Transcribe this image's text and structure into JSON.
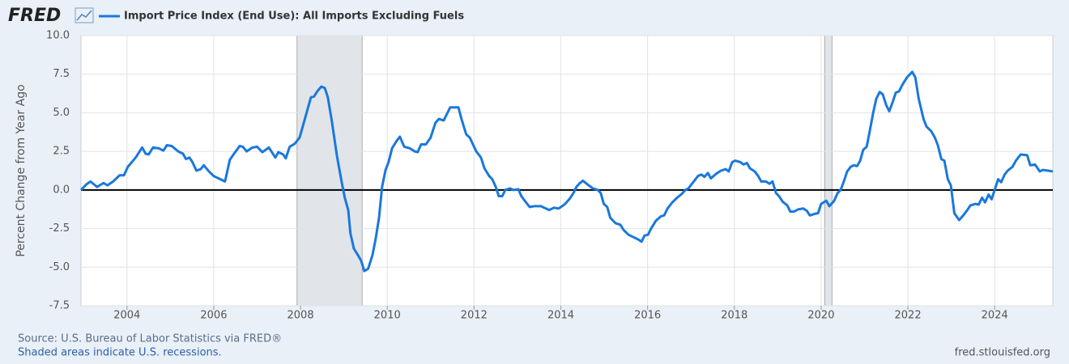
{
  "chart_data": {
    "type": "line",
    "logo": "FRED",
    "y_label": "Percent Change from Year Ago",
    "source": "Source: U.S. Bureau of Labor Statistics via FRED®",
    "note": "Shaded areas indicate U.S. recessions.",
    "url": "fred.stlouisfed.org",
    "xlim": [
      2002.94,
      2025.34
    ],
    "xticks": [
      2004,
      2006,
      2008,
      2010,
      2012,
      2014,
      2016,
      2018,
      2020,
      2022,
      2024
    ],
    "ylim": [
      -7.5,
      10
    ],
    "yticks": [
      {
        "value": 10,
        "label": "10.0"
      },
      7.5,
      {
        "value": 5,
        "label": "5.0"
      },
      2.5,
      {
        "value": 0,
        "label": "0.0"
      },
      -2.5,
      {
        "value": -5,
        "label": "-5.0"
      },
      -7.5
    ],
    "grid": true,
    "zero_line": true,
    "recessions": [
      [
        2007.92,
        2009.42
      ],
      [
        2020.08,
        2020.25
      ]
    ],
    "x": [
      2002.94,
      2003.08,
      2003.16,
      2003.31,
      2003.46,
      2003.55,
      2003.68,
      2003.83,
      2003.93,
      2004.02,
      2004.2,
      2004.35,
      2004.43,
      2004.5,
      2004.6,
      2004.73,
      2004.84,
      2004.92,
      2005.03,
      2005.18,
      2005.29,
      2005.36,
      2005.44,
      2005.51,
      2005.6,
      2005.7,
      2005.77,
      2005.89,
      2006.0,
      2006.15,
      2006.26,
      2006.37,
      2006.48,
      2006.6,
      2006.67,
      2006.76,
      2006.89,
      2007.0,
      2007.12,
      2007.27,
      2007.42,
      2007.49,
      2007.6,
      2007.66,
      2007.75,
      2007.87,
      2007.98,
      2008.09,
      2008.24,
      2008.31,
      2008.39,
      2008.48,
      2008.56,
      2008.63,
      2008.72,
      2008.84,
      2008.95,
      2009.02,
      2009.1,
      2009.15,
      2009.23,
      2009.32,
      2009.4,
      2009.47,
      2009.56,
      2009.66,
      2009.73,
      2009.81,
      2009.88,
      2009.96,
      2010.03,
      2010.11,
      2010.22,
      2010.29,
      2010.39,
      2010.52,
      2010.63,
      2010.7,
      2010.78,
      2010.89,
      2011.0,
      2011.11,
      2011.19,
      2011.3,
      2011.45,
      2011.64,
      2011.71,
      2011.82,
      2011.9,
      2012.05,
      2012.16,
      2012.24,
      2012.35,
      2012.42,
      2012.5,
      2012.57,
      2012.65,
      2012.72,
      2012.83,
      2012.91,
      2013.02,
      2013.09,
      2013.17,
      2013.28,
      2013.39,
      2013.54,
      2013.73,
      2013.84,
      2013.95,
      2014.03,
      2014.1,
      2014.21,
      2014.29,
      2014.36,
      2014.44,
      2014.51,
      2014.62,
      2014.74,
      2014.85,
      2014.92,
      2014.99,
      2015.07,
      2015.14,
      2015.26,
      2015.37,
      2015.45,
      2015.56,
      2015.67,
      2015.78,
      2015.86,
      2015.93,
      2016.01,
      2016.08,
      2016.19,
      2016.31,
      2016.38,
      2016.46,
      2016.57,
      2016.68,
      2016.79,
      2016.87,
      2016.94,
      2017.05,
      2017.16,
      2017.24,
      2017.31,
      2017.39,
      2017.46,
      2017.58,
      2017.69,
      2017.8,
      2017.87,
      2017.95,
      2018.02,
      2018.14,
      2018.21,
      2018.29,
      2018.36,
      2018.47,
      2018.55,
      2018.62,
      2018.73,
      2018.81,
      2018.88,
      2018.96,
      2019.03,
      2019.11,
      2019.22,
      2019.29,
      2019.37,
      2019.48,
      2019.59,
      2019.67,
      2019.74,
      2019.85,
      2019.93,
      2020.0,
      2020.12,
      2020.19,
      2020.3,
      2020.38,
      2020.45,
      2020.53,
      2020.6,
      2020.68,
      2020.75,
      2020.83,
      2020.9,
      2020.97,
      2021.05,
      2021.12,
      2021.2,
      2021.27,
      2021.35,
      2021.42,
      2021.5,
      2021.57,
      2021.65,
      2021.72,
      2021.8,
      2021.87,
      2021.98,
      2022.1,
      2022.17,
      2022.25,
      2022.36,
      2022.43,
      2022.54,
      2022.62,
      2022.69,
      2022.77,
      2022.84,
      2022.92,
      2022.99,
      2023.07,
      2023.18,
      2023.26,
      2023.37,
      2023.44,
      2023.56,
      2023.63,
      2023.71,
      2023.78,
      2023.86,
      2023.93,
      2024.0,
      2024.08,
      2024.15,
      2024.23,
      2024.3,
      2024.41,
      2024.49,
      2024.6,
      2024.75,
      2024.82,
      2024.93,
      2025.04,
      2025.11,
      2025.23,
      2025.34
    ],
    "series": [
      {
        "name": "Import Price Index (End Use): All Imports Excluding Fuels",
        "color": "#1a78dc",
        "values": [
          0,
          0.4,
          0.55,
          0.2,
          0.45,
          0.3,
          0.55,
          0.95,
          0.95,
          1.5,
          2.1,
          2.75,
          2.35,
          2.3,
          2.75,
          2.7,
          2.55,
          2.9,
          2.85,
          2.5,
          2.35,
          2.0,
          2.1,
          1.8,
          1.25,
          1.35,
          1.6,
          1.2,
          0.9,
          0.7,
          0.55,
          1.95,
          2.4,
          2.85,
          2.8,
          2.5,
          2.75,
          2.8,
          2.45,
          2.75,
          2.1,
          2.45,
          2.3,
          2.05,
          2.8,
          3.0,
          3.4,
          4.5,
          6.0,
          6.05,
          6.4,
          6.7,
          6.6,
          6.0,
          4.5,
          2.2,
          0.5,
          -0.5,
          -1.3,
          -2.8,
          -3.8,
          -4.2,
          -4.6,
          -5.25,
          -5.1,
          -4.2,
          -3.2,
          -1.8,
          0.2,
          1.3,
          1.8,
          2.7,
          3.2,
          3.45,
          2.8,
          2.7,
          2.5,
          2.45,
          2.95,
          2.95,
          3.4,
          4.35,
          4.6,
          4.5,
          5.35,
          5.35,
          4.6,
          3.6,
          3.4,
          2.5,
          2.1,
          1.4,
          0.9,
          0.7,
          0.2,
          -0.4,
          -0.4,
          0,
          0.1,
          0,
          0.05,
          -0.4,
          -0.7,
          -1.1,
          -1.05,
          -1.05,
          -1.3,
          -1.15,
          -1.2,
          -1.05,
          -0.9,
          -0.55,
          -0.2,
          0.2,
          0.45,
          0.6,
          0.35,
          0.1,
          0,
          -0.2,
          -0.9,
          -1.1,
          -1.8,
          -2.15,
          -2.25,
          -2.6,
          -2.9,
          -3.05,
          -3.2,
          -3.35,
          -2.95,
          -2.9,
          -2.5,
          -2.0,
          -1.7,
          -1.65,
          -1.2,
          -0.8,
          -0.5,
          -0.25,
          0,
          0.1,
          0.5,
          0.9,
          1.0,
          0.85,
          1.1,
          0.75,
          1.05,
          1.25,
          1.35,
          1.2,
          1.8,
          1.9,
          1.8,
          1.65,
          1.75,
          1.4,
          1.2,
          0.9,
          0.55,
          0.55,
          0.4,
          0.55,
          -0.2,
          -0.4,
          -0.75,
          -1.0,
          -1.4,
          -1.4,
          -1.25,
          -1.2,
          -1.35,
          -1.65,
          -1.55,
          -1.5,
          -0.9,
          -0.7,
          -1.05,
          -0.7,
          -0.2,
          0,
          0.6,
          1.2,
          1.5,
          1.6,
          1.55,
          1.9,
          2.6,
          2.8,
          3.8,
          5.0,
          5.9,
          6.35,
          6.2,
          5.5,
          5.1,
          5.7,
          6.3,
          6.4,
          6.8,
          7.3,
          7.65,
          7.3,
          5.9,
          4.6,
          4.1,
          3.8,
          3.4,
          2.9,
          2.0,
          1.9,
          0.7,
          0.3,
          -1.5,
          -1.95,
          -1.7,
          -1.3,
          -1.0,
          -0.9,
          -0.95,
          -0.5,
          -0.8,
          -0.3,
          -0.6,
          0,
          0.7,
          0.5,
          1.0,
          1.25,
          1.5,
          1.9,
          2.3,
          2.25,
          1.6,
          1.65,
          1.2,
          1.3,
          1.25,
          1.2
        ]
      }
    ]
  }
}
